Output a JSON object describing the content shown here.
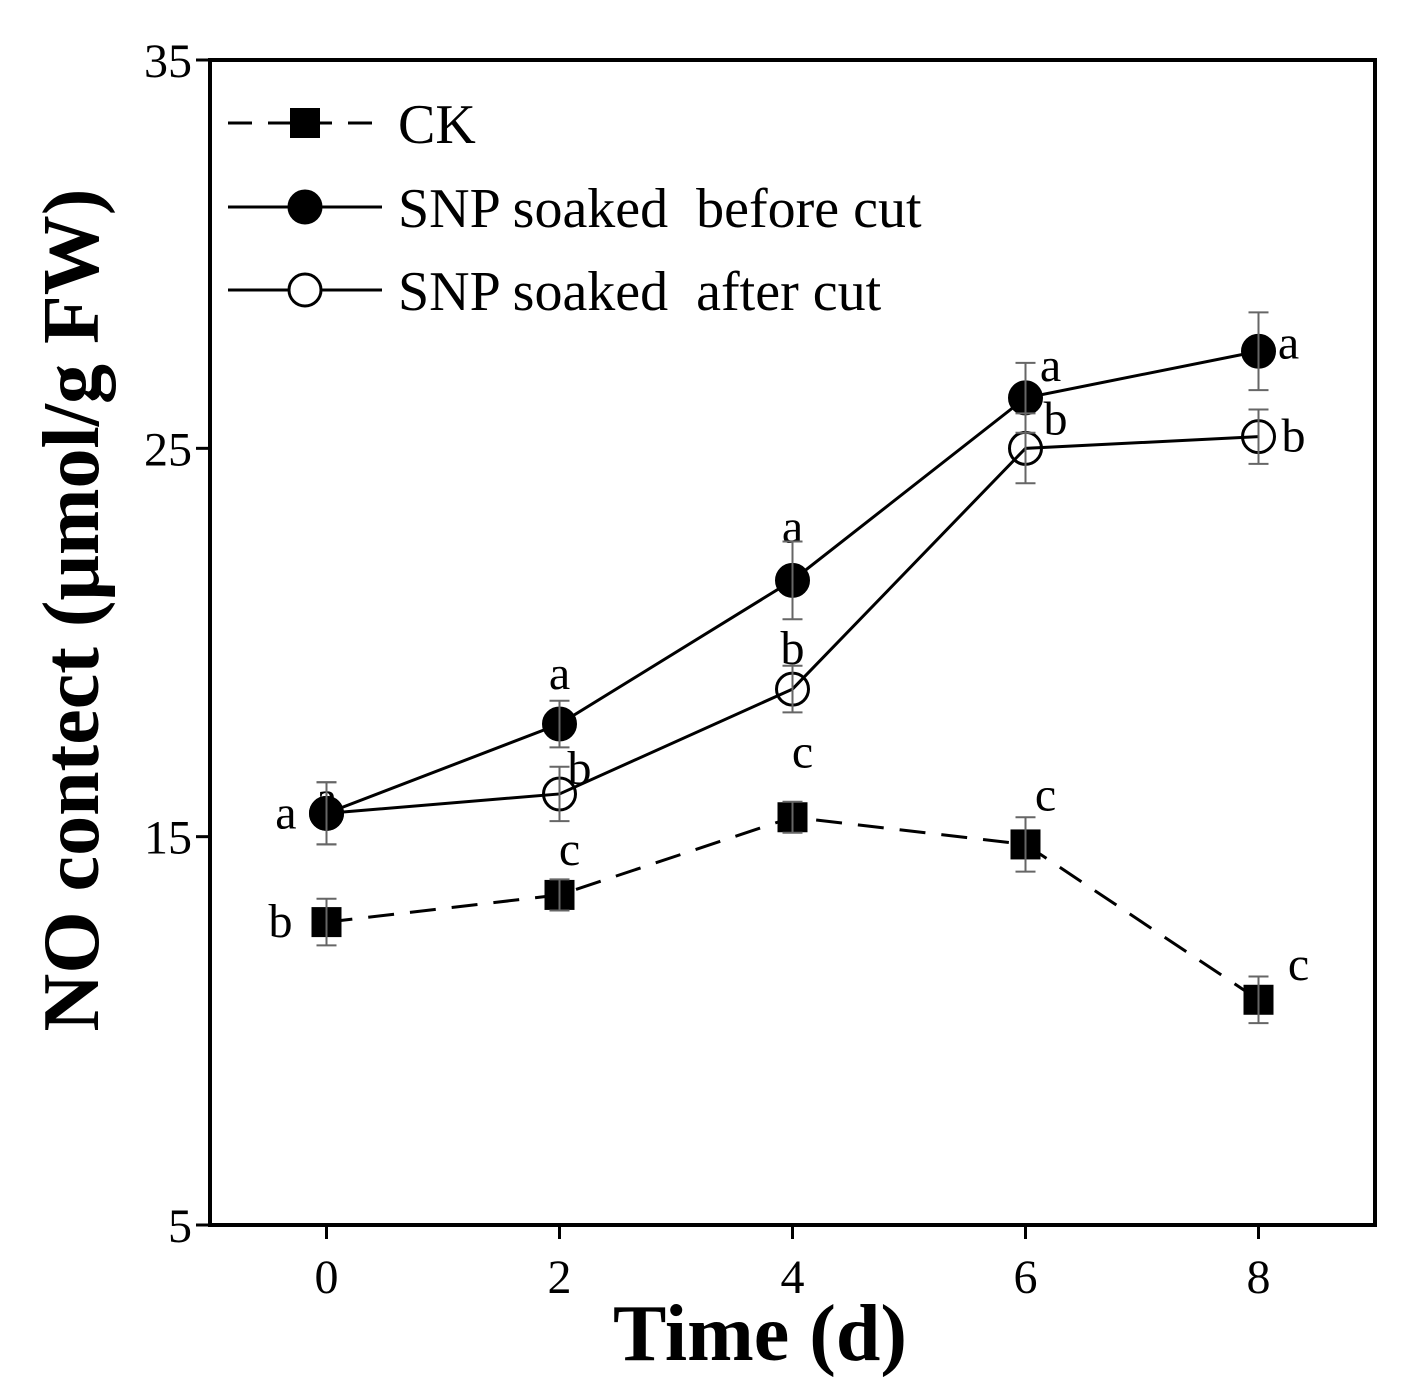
{
  "chart_data": {
    "type": "line",
    "title": "",
    "xlabel": "Time (d)",
    "ylabel": "NO contect (μmol/g FW)",
    "xlim": [
      -1,
      9
    ],
    "ylim": [
      5,
      35
    ],
    "x": [
      0,
      2,
      4,
      6,
      8
    ],
    "xticks": [
      0,
      2,
      4,
      6,
      8
    ],
    "yticks": [
      5,
      15,
      25,
      35
    ],
    "legend_position": "top-left",
    "series": [
      {
        "name": "CK",
        "values": [
          12.8,
          13.5,
          15.5,
          14.8,
          10.8
        ],
        "errors": [
          0.6,
          0.4,
          0.4,
          0.7,
          0.6
        ],
        "labels": [
          "b",
          "c",
          "c",
          "c",
          "c"
        ],
        "marker": "square-filled",
        "line": "dashed"
      },
      {
        "name": "SNP soaked  before cut",
        "values": [
          15.6,
          17.9,
          21.6,
          26.3,
          27.5
        ],
        "errors": [
          0.8,
          0.6,
          1.0,
          0.9,
          1.0
        ],
        "labels": [
          "a",
          "a",
          "a",
          "a",
          "a"
        ],
        "marker": "circle-filled",
        "line": "solid"
      },
      {
        "name": "SNP soaked  after cut",
        "values": [
          15.6,
          16.1,
          18.8,
          25.0,
          25.3
        ],
        "errors": [
          0.8,
          0.7,
          0.6,
          0.9,
          0.7
        ],
        "labels": [
          "a",
          "b",
          "b",
          "b",
          "b"
        ],
        "marker": "circle-open",
        "line": "solid"
      }
    ]
  }
}
